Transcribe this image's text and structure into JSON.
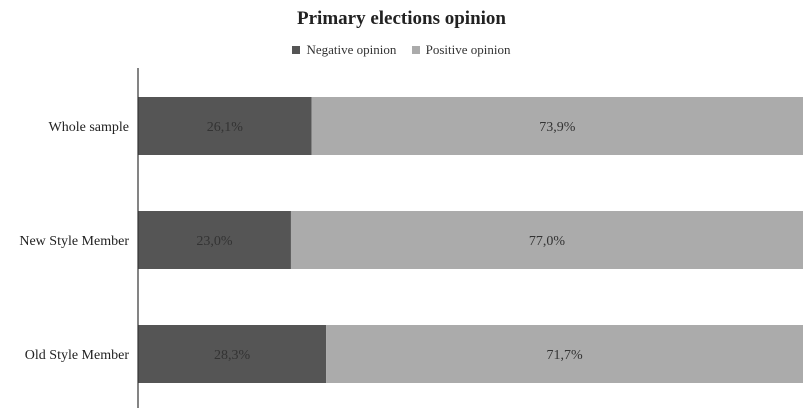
{
  "chart_data": {
    "type": "bar",
    "orientation": "horizontal",
    "stacked": true,
    "title": "Primary elections opinion",
    "categories": [
      "Whole sample",
      "New Style Member",
      "Old Style Member"
    ],
    "series": [
      {
        "name": "Negative opinion",
        "color": "#555555",
        "values": [
          26.1,
          23.0,
          28.3
        ],
        "labels": [
          "26,1%",
          "23,0%",
          "28,3%"
        ]
      },
      {
        "name": "Positive opinion",
        "color": "#ababab",
        "values": [
          73.9,
          77.0,
          71.7
        ],
        "labels": [
          "73,9%",
          "77,0%",
          "71,7%"
        ]
      }
    ],
    "xlim": [
      0,
      100
    ],
    "legend_position": "top",
    "grid": false
  }
}
